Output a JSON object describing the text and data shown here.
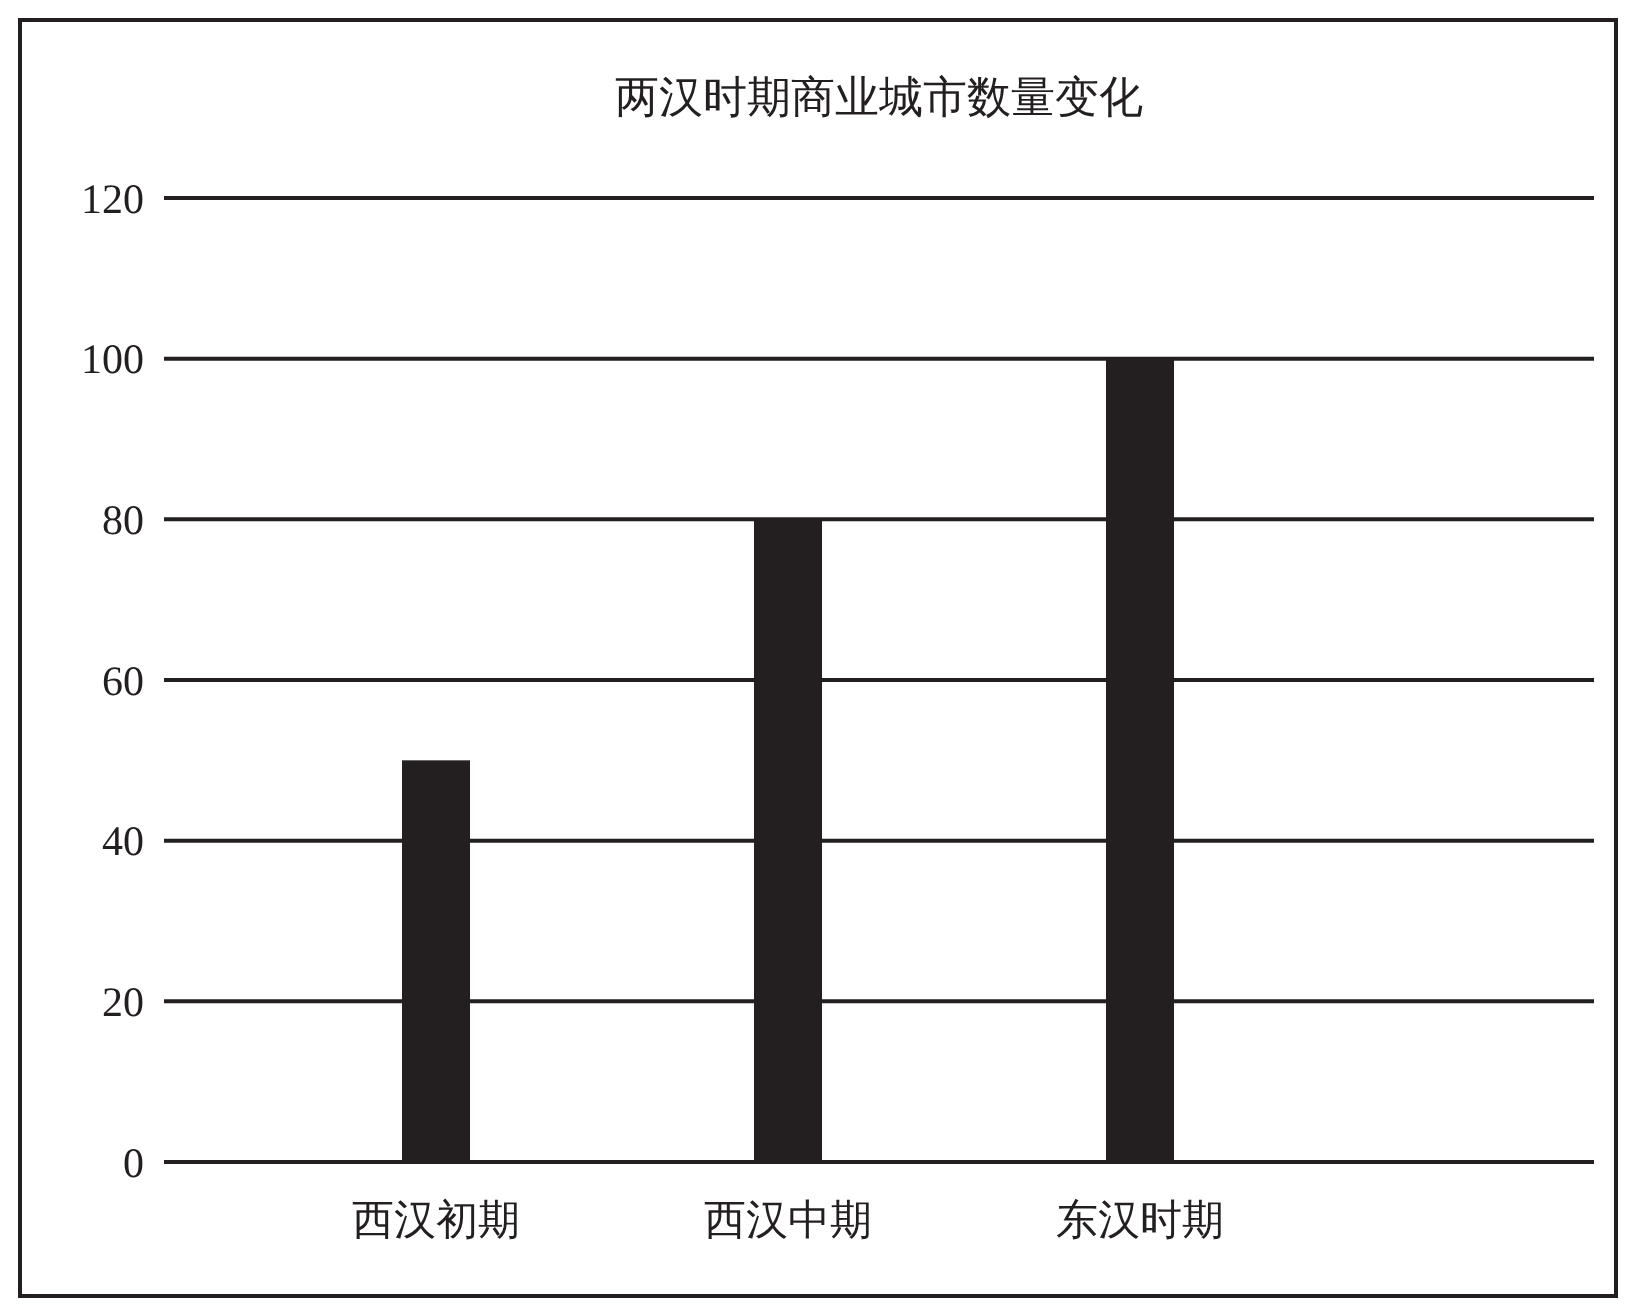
{
  "chart_data": {
    "type": "bar",
    "title": "两汉时期商业城市数量变化",
    "categories": [
      "西汉初期",
      "西汉中期",
      "东汉时期"
    ],
    "values": [
      50,
      80,
      100
    ],
    "color": "#231f20",
    "ylim": [
      0,
      120
    ],
    "yticks": [
      0,
      20,
      40,
      60,
      80,
      100,
      120
    ],
    "grid": "y"
  }
}
